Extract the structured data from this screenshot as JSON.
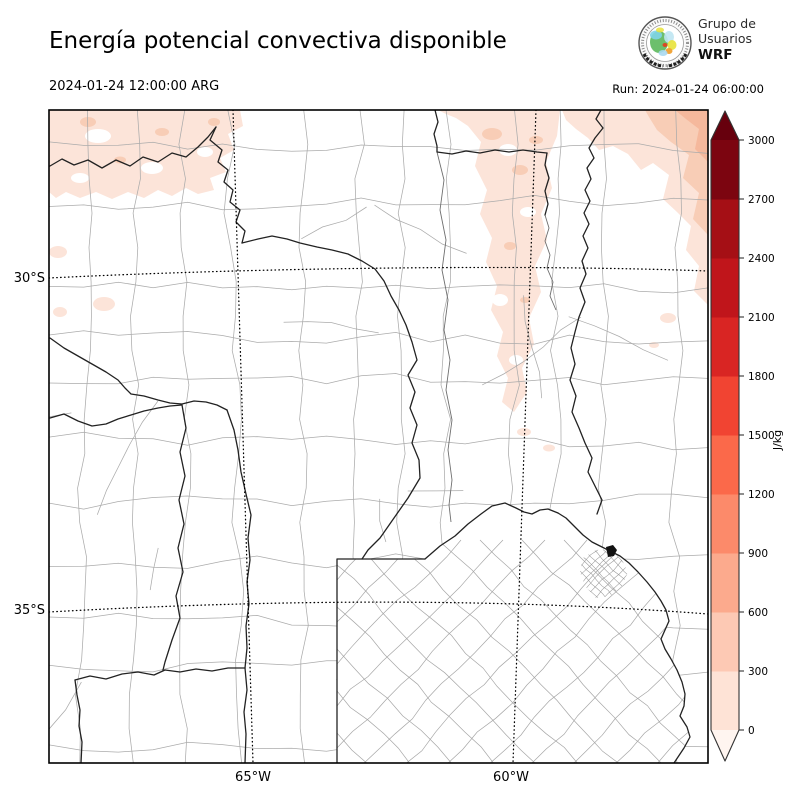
{
  "header": {
    "title": "Energía potencial convectiva disponible",
    "valid_time": "2024-01-24 12:00:00 ARG",
    "run_label": "Run: 2024-01-24 06:00:00",
    "logo": {
      "line1": "Grupo de",
      "line2": "Usuarios",
      "line3": "WRF"
    }
  },
  "map": {
    "lat_ticks": [
      "30°S",
      "35°S"
    ],
    "lon_ticks": [
      "65°W",
      "60°W"
    ],
    "gridlines": "dotted"
  },
  "colorbar": {
    "unit": "J/kg",
    "min": 0,
    "max": 3000,
    "tick_step": 300,
    "tick_values": [
      0,
      300,
      600,
      900,
      1200,
      1500,
      1800,
      2100,
      2400,
      2700,
      3000
    ],
    "segment_colors": [
      "#fee3d6",
      "#fdc9b4",
      "#fcaa8d",
      "#fc8a6a",
      "#fb694a",
      "#f14432",
      "#d92523",
      "#c0151b",
      "#a50f15",
      "#7c0510"
    ],
    "extend_over_color": "#67000d",
    "extend_under_color": "#fff5f0"
  },
  "cape_field": {
    "shaded_regions": [
      {
        "area": "northwest corner",
        "approx_value_jkg": "0-300"
      },
      {
        "area": "north-center column (Santiago del Estero)",
        "approx_value_jkg": "0-600"
      },
      {
        "area": "northeast corner",
        "approx_value_jkg": "300-900"
      }
    ],
    "rest_of_domain_jkg": "below 0 contour interval (white)"
  },
  "colors": {
    "patch_light": "#fce4d9",
    "patch_medium": "#f8cdb6",
    "patch_deep": "#f5b89c",
    "mesh_gray": "#ababab",
    "province_black": "#222222"
  }
}
